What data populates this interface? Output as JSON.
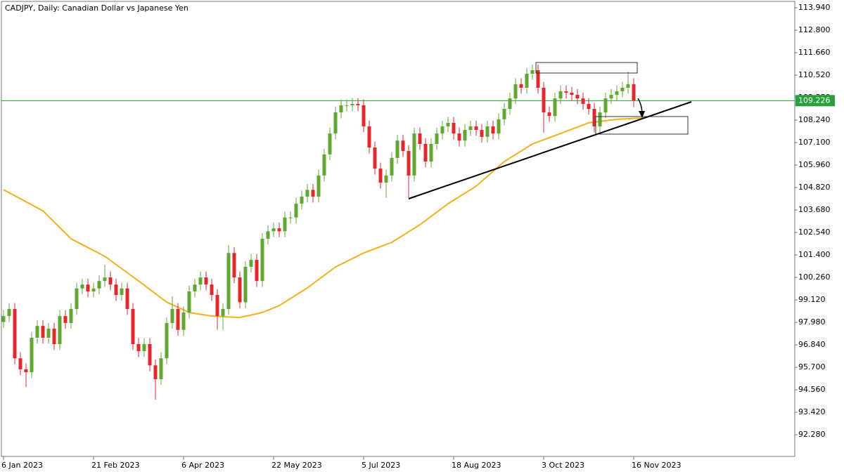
{
  "chart_data": {
    "type": "candlestick",
    "title": "CADJPY, Daily:  Canadian Dollar vs Japanese Yen",
    "categories": [
      "6 Jan 2023",
      null,
      null,
      null,
      null,
      null,
      null,
      null,
      null,
      null,
      null,
      null,
      null,
      null,
      null,
      null,
      "21 Feb 2023",
      null,
      null,
      null,
      null,
      null,
      null,
      null,
      null,
      null,
      null,
      null,
      null,
      null,
      null,
      null,
      "6 Apr 2023",
      null,
      null,
      null,
      null,
      null,
      null,
      null,
      null,
      null,
      null,
      null,
      null,
      null,
      null,
      null,
      "22 May 2023",
      null,
      null,
      null,
      null,
      null,
      null,
      null,
      null,
      null,
      null,
      null,
      null,
      null,
      null,
      null,
      "5 Jul 2023",
      null,
      null,
      null,
      null,
      null,
      null,
      null,
      null,
      null,
      null,
      null,
      null,
      null,
      null,
      null,
      "18 Aug 2023",
      null,
      null,
      null,
      null,
      null,
      null,
      null,
      null,
      null,
      null,
      null,
      null,
      null,
      null,
      null,
      "3 Oct 2023",
      null,
      null,
      null,
      null,
      null,
      null,
      null,
      null,
      null,
      null,
      null,
      null,
      null,
      null,
      null,
      "16 Nov 2023"
    ],
    "open": [
      98.0,
      98.3,
      98.66,
      96.16,
      95.6,
      95.45,
      97.2,
      97.8,
      97.2,
      97.66,
      96.88,
      98.3,
      97.95,
      98.66,
      99.7,
      99.9,
      99.55,
      99.7,
      100.08,
      100.26,
      99.9,
      99.37,
      99.7,
      98.66,
      96.88,
      96.52,
      96.88,
      95.8,
      95.1,
      96.16,
      97.95,
      98.66,
      97.6,
      98.48,
      99.55,
      99.9,
      100.26,
      99.9,
      99.37,
      98.3,
      98.66,
      101.5,
      100.26,
      99.0,
      100.8,
      101.15,
      100.08,
      102.22,
      102.6,
      102.75,
      102.6,
      103.3,
      103.3,
      104.0,
      104.36,
      104.7,
      104.36,
      105.43,
      106.5,
      107.56,
      108.63,
      108.99,
      108.99,
      109.06,
      108.99,
      107.92,
      106.85,
      105.78,
      105.07,
      105.43,
      106.32,
      107.2,
      106.67,
      105.43,
      107.56,
      107.03,
      106.14,
      107.03,
      107.56,
      107.92,
      108.1,
      107.56,
      107.2,
      107.74,
      107.92,
      107.74,
      107.39,
      107.92,
      107.56,
      108.28,
      108.81,
      109.34,
      110.06,
      109.88,
      110.59,
      110.77,
      109.88,
      108.63,
      108.45,
      109.34,
      109.7,
      109.63,
      109.52,
      109.34,
      109.06,
      108.81,
      107.92,
      108.63,
      109.34,
      109.52,
      109.7,
      109.88,
      110.06
    ],
    "high": [
      98.6,
      98.96,
      98.96,
      96.46,
      95.9,
      97.5,
      98.1,
      98.1,
      97.96,
      97.96,
      98.6,
      98.6,
      98.96,
      100.0,
      100.2,
      100.2,
      100.0,
      100.38,
      100.9,
      100.56,
      100.2,
      100.0,
      100.0,
      98.96,
      97.18,
      97.18,
      97.18,
      96.1,
      96.46,
      98.25,
      99.3,
      98.96,
      98.78,
      99.85,
      100.2,
      100.56,
      100.56,
      100.2,
      99.67,
      98.96,
      101.9,
      101.8,
      100.56,
      101.1,
      101.45,
      101.45,
      102.52,
      102.9,
      103.05,
      103.05,
      103.6,
      103.6,
      104.3,
      104.66,
      105.0,
      105.0,
      105.73,
      106.8,
      107.86,
      108.93,
      109.29,
      109.29,
      109.36,
      109.36,
      109.29,
      108.22,
      107.15,
      106.08,
      105.73,
      106.62,
      107.5,
      107.5,
      106.97,
      107.86,
      107.86,
      107.33,
      107.33,
      107.86,
      108.22,
      108.4,
      108.4,
      107.86,
      108.04,
      108.22,
      108.22,
      108.04,
      108.22,
      108.22,
      108.58,
      109.11,
      109.64,
      110.36,
      110.36,
      110.89,
      111.07,
      111.07,
      110.18,
      108.93,
      109.64,
      110.0,
      110.0,
      109.93,
      109.82,
      109.64,
      109.36,
      109.11,
      108.93,
      109.64,
      109.82,
      110.0,
      110.18,
      110.7,
      110.36
    ],
    "low": [
      97.7,
      98.0,
      95.86,
      95.3,
      94.7,
      95.15,
      96.9,
      96.9,
      96.9,
      96.58,
      96.58,
      97.65,
      97.65,
      98.36,
      99.4,
      99.25,
      99.25,
      99.4,
      99.78,
      99.6,
      99.07,
      99.07,
      98.36,
      96.58,
      96.22,
      96.22,
      95.5,
      94.06,
      94.8,
      95.86,
      97.65,
      97.3,
      97.3,
      98.18,
      99.25,
      99.6,
      99.6,
      99.07,
      97.6,
      97.6,
      98.36,
      99.96,
      98.7,
      98.7,
      100.5,
      99.78,
      99.78,
      101.92,
      102.3,
      102.3,
      102.3,
      103.0,
      103.0,
      103.7,
      104.06,
      104.06,
      104.06,
      105.13,
      106.2,
      107.26,
      108.33,
      108.69,
      108.69,
      108.69,
      107.62,
      106.55,
      105.48,
      104.77,
      104.3,
      105.13,
      106.02,
      106.37,
      104.3,
      105.13,
      106.73,
      105.84,
      105.84,
      106.73,
      107.26,
      107.62,
      107.26,
      106.9,
      106.9,
      107.44,
      107.44,
      107.09,
      107.09,
      107.26,
      107.26,
      107.98,
      108.51,
      109.04,
      109.58,
      109.58,
      110.29,
      109.58,
      107.6,
      108.15,
      108.15,
      109.04,
      109.33,
      109.22,
      109.04,
      108.76,
      108.51,
      107.62,
      107.62,
      108.33,
      109.04,
      109.22,
      109.4,
      109.58,
      108.9
    ],
    "close": [
      98.3,
      98.66,
      96.16,
      95.6,
      95.45,
      97.2,
      97.8,
      97.2,
      97.66,
      96.88,
      98.3,
      97.95,
      98.66,
      99.7,
      99.9,
      99.55,
      99.7,
      100.08,
      100.26,
      99.9,
      99.37,
      99.7,
      98.66,
      96.88,
      96.52,
      96.88,
      95.8,
      95.1,
      96.16,
      97.95,
      98.66,
      97.6,
      98.48,
      99.55,
      99.9,
      100.26,
      99.9,
      99.37,
      98.3,
      98.66,
      101.5,
      100.26,
      99.0,
      100.8,
      101.15,
      100.08,
      102.22,
      102.6,
      102.75,
      102.6,
      103.3,
      103.3,
      104.0,
      104.36,
      104.7,
      104.36,
      105.43,
      106.5,
      107.56,
      108.63,
      108.99,
      108.99,
      109.06,
      108.99,
      107.92,
      106.85,
      105.78,
      105.07,
      105.43,
      106.32,
      107.2,
      106.67,
      105.43,
      107.56,
      107.03,
      106.14,
      107.03,
      107.56,
      107.92,
      108.1,
      107.56,
      107.2,
      107.74,
      107.92,
      107.74,
      107.39,
      107.92,
      107.56,
      108.28,
      108.81,
      109.34,
      110.06,
      109.88,
      110.59,
      110.77,
      109.88,
      108.63,
      108.45,
      109.34,
      109.7,
      109.63,
      109.52,
      109.34,
      109.06,
      108.81,
      107.92,
      108.63,
      109.34,
      109.52,
      109.7,
      109.88,
      110.06,
      109.226
    ],
    "up_color": "#5ea832",
    "down_color": "#e3262b",
    "moving_average": {
      "color": "#f5b01c",
      "x": [
        0,
        7,
        12,
        18,
        24,
        29,
        33,
        37,
        42,
        46,
        49,
        54,
        59,
        64,
        69,
        74,
        79,
        84,
        89,
        94,
        99,
        104,
        109,
        114
      ],
      "values": [
        104.71,
        103.64,
        102.22,
        101.33,
        100.08,
        99.01,
        98.48,
        98.3,
        98.23,
        98.48,
        98.83,
        99.73,
        100.79,
        101.5,
        102.04,
        102.93,
        104.0,
        104.89,
        106.14,
        107.03,
        107.56,
        108.1,
        108.28,
        108.35
      ]
    },
    "current_price": 109.226,
    "current_price_color": "#26a03c",
    "ylim": [
      91.18,
      114.26
    ],
    "yticks": [
      {
        "value": 113.94,
        "label": "113.940"
      },
      {
        "value": 112.8,
        "label": "112.800"
      },
      {
        "value": 111.66,
        "label": "111.660"
      },
      {
        "value": 110.52,
        "label": "110.520"
      },
      {
        "value": 109.38,
        "label": "109.380"
      },
      {
        "value": 108.24,
        "label": "108.240"
      },
      {
        "value": 107.1,
        "label": "107.100"
      },
      {
        "value": 105.96,
        "label": "105.960"
      },
      {
        "value": 104.82,
        "label": "104.820"
      },
      {
        "value": 103.68,
        "label": "103.680"
      },
      {
        "value": 102.54,
        "label": "102.540"
      },
      {
        "value": 101.4,
        "label": "101.400"
      },
      {
        "value": 100.26,
        "label": "100.260"
      },
      {
        "value": 99.12,
        "label": "99.120"
      },
      {
        "value": 97.98,
        "label": "97.980"
      },
      {
        "value": 96.84,
        "label": "96.840"
      },
      {
        "value": 95.7,
        "label": "95.700"
      },
      {
        "value": 94.56,
        "label": "94.560"
      },
      {
        "value": 93.42,
        "label": "93.420"
      },
      {
        "value": 92.28,
        "label": "92.280"
      }
    ]
  }
}
